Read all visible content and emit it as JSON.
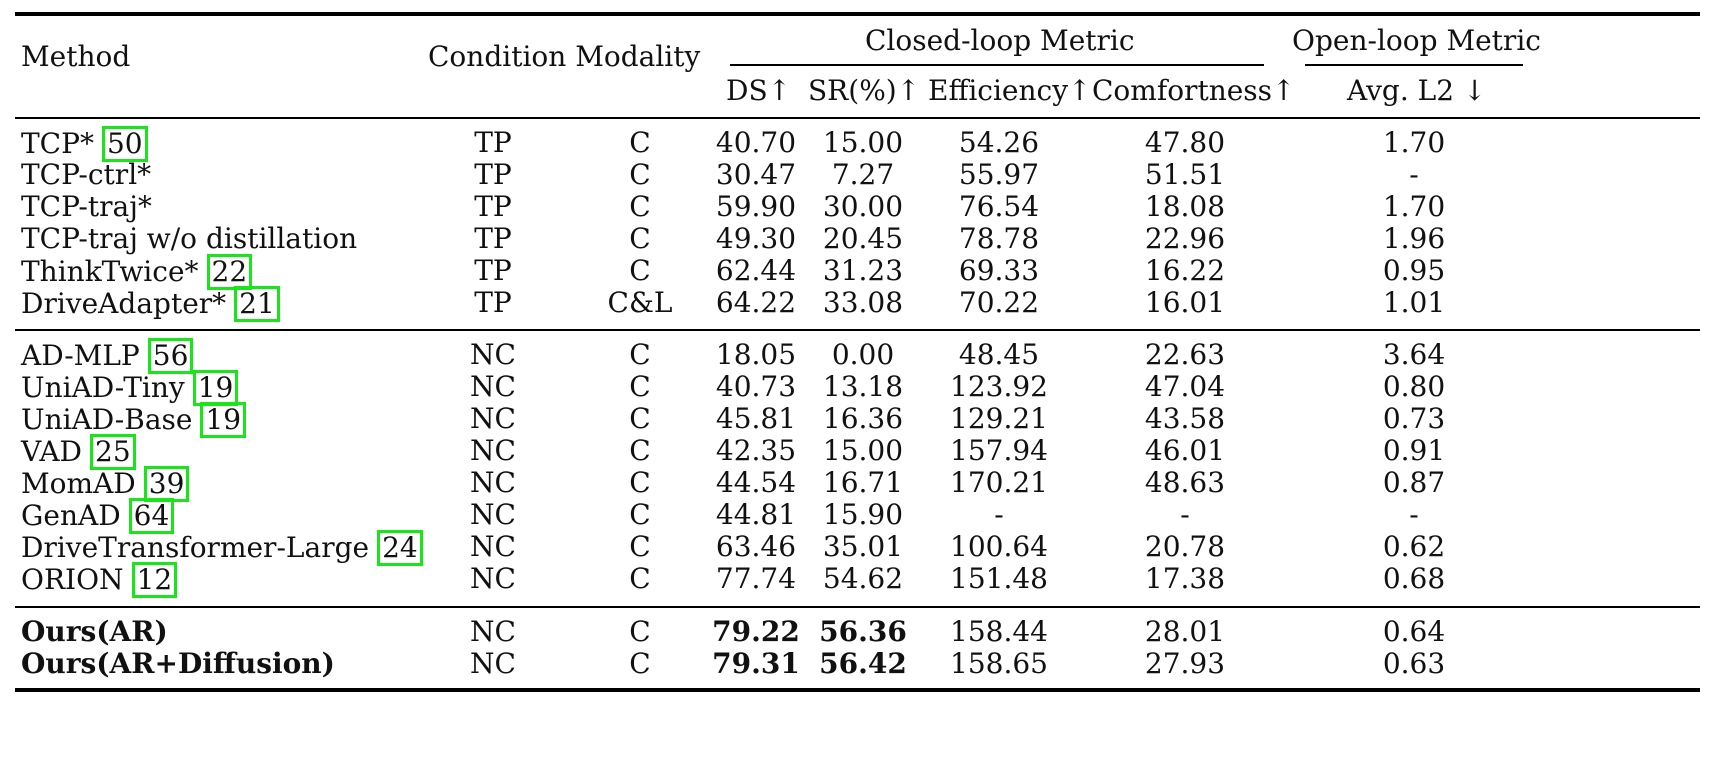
{
  "header": {
    "method": "Method",
    "condition_modality": "Condition Modality",
    "closed_loop": "Closed-loop Metric",
    "open_loop": "Open-loop Metric",
    "ds": "DS↑",
    "sr": "SR(%)↑",
    "efficiency": "Efficiency↑",
    "comfortness": "Comfortness↑",
    "avg_l2": "Avg. L2 ↓"
  },
  "groups": [
    {
      "rows": [
        {
          "method": "TCP*",
          "cite": "50",
          "condition": "TP",
          "modality": "C",
          "ds": "40.70",
          "sr": "15.00",
          "eff": "54.26",
          "comf": "47.80",
          "l2": "1.70"
        },
        {
          "method": "TCP-ctrl*",
          "cite": "",
          "condition": "TP",
          "modality": "C",
          "ds": "30.47",
          "sr": "7.27",
          "eff": "55.97",
          "comf": "51.51",
          "l2": "-"
        },
        {
          "method": "TCP-traj*",
          "cite": "",
          "condition": "TP",
          "modality": "C",
          "ds": "59.90",
          "sr": "30.00",
          "eff": "76.54",
          "comf": "18.08",
          "l2": "1.70"
        },
        {
          "method": "TCP-traj w/o distillation",
          "cite": "",
          "condition": "TP",
          "modality": "C",
          "ds": "49.30",
          "sr": "20.45",
          "eff": "78.78",
          "comf": "22.96",
          "l2": "1.96"
        },
        {
          "method": "ThinkTwice*",
          "cite": "22",
          "condition": "TP",
          "modality": "C",
          "ds": "62.44",
          "sr": "31.23",
          "eff": "69.33",
          "comf": "16.22",
          "l2": "0.95"
        },
        {
          "method": "DriveAdapter*",
          "cite": "21",
          "condition": "TP",
          "modality": "C&L",
          "ds": "64.22",
          "sr": "33.08",
          "eff": "70.22",
          "comf": "16.01",
          "l2": "1.01"
        }
      ]
    },
    {
      "rows": [
        {
          "method": "AD-MLP",
          "cite": "56",
          "condition": "NC",
          "modality": "C",
          "ds": "18.05",
          "sr": "0.00",
          "eff": "48.45",
          "comf": "22.63",
          "l2": "3.64"
        },
        {
          "method": "UniAD-Tiny",
          "cite": "19",
          "condition": "NC",
          "modality": "C",
          "ds": "40.73",
          "sr": "13.18",
          "eff": "123.92",
          "comf": "47.04",
          "l2": "0.80"
        },
        {
          "method": "UniAD-Base",
          "cite": "19",
          "condition": "NC",
          "modality": "C",
          "ds": "45.81",
          "sr": "16.36",
          "eff": "129.21",
          "comf": "43.58",
          "l2": "0.73"
        },
        {
          "method": "VAD",
          "cite": "25",
          "condition": "NC",
          "modality": "C",
          "ds": "42.35",
          "sr": "15.00",
          "eff": "157.94",
          "comf": "46.01",
          "l2": "0.91"
        },
        {
          "method": "MomAD",
          "cite": "39",
          "condition": "NC",
          "modality": "C",
          "ds": "44.54",
          "sr": "16.71",
          "eff": "170.21",
          "comf": "48.63",
          "l2": "0.87"
        },
        {
          "method": "GenAD",
          "cite": "64",
          "condition": "NC",
          "modality": "C",
          "ds": "44.81",
          "sr": "15.90",
          "eff": "-",
          "comf": "-",
          "l2": "-"
        },
        {
          "method": "DriveTransformer-Large",
          "cite": "24",
          "condition": "NC",
          "modality": "C",
          "ds": "63.46",
          "sr": "35.01",
          "eff": "100.64",
          "comf": "20.78",
          "l2": "0.62"
        },
        {
          "method": "ORION",
          "cite": "12",
          "condition": "NC",
          "modality": "C",
          "ds": "77.74",
          "sr": "54.62",
          "eff": "151.48",
          "comf": "17.38",
          "l2": "0.68"
        }
      ]
    },
    {
      "rows": [
        {
          "method": "Ours(AR)",
          "cite": "",
          "condition": "NC",
          "modality": "C",
          "ds": "79.22",
          "sr": "56.36",
          "eff": "158.44",
          "comf": "28.01",
          "l2": "0.64"
        },
        {
          "method": "Ours(AR+Diffusion)",
          "cite": "",
          "condition": "NC",
          "modality": "C",
          "ds": "79.31",
          "sr": "56.42",
          "eff": "158.65",
          "comf": "27.93",
          "l2": "0.63"
        }
      ]
    }
  ],
  "colors": {
    "citation_box": "#19e619",
    "text": "#111111",
    "rule": "#000000"
  }
}
